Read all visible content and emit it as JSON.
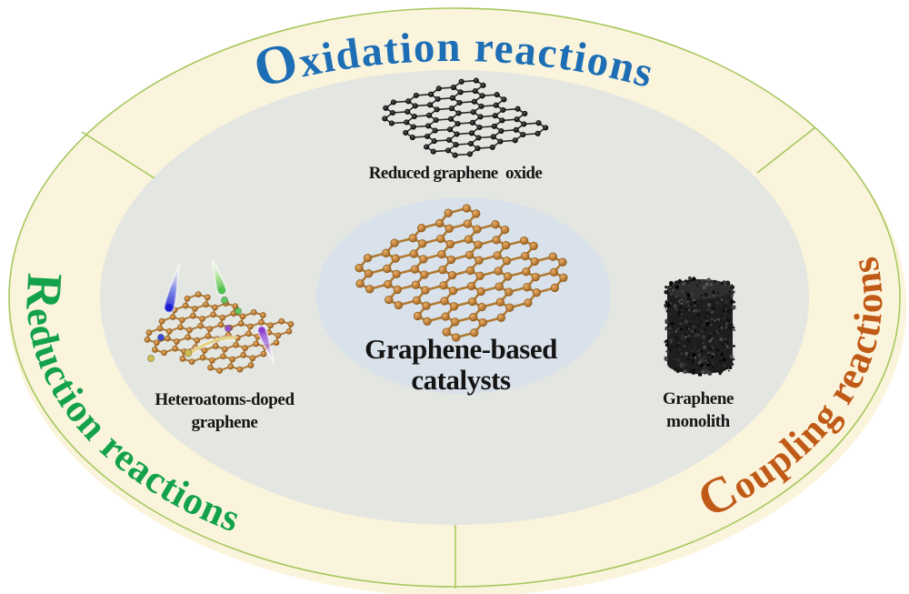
{
  "ring": {
    "oxidation": {
      "label": "Oxidation reactions",
      "color": "#1d6eb5"
    },
    "reduction": {
      "label": "Reduction reactions",
      "color": "#13a24b"
    },
    "coupling": {
      "label": "Coupling reactions",
      "color": "#c05a17"
    }
  },
  "center_label": {
    "line1": "Graphene-based",
    "line2": "catalysts"
  },
  "materials": {
    "reduced_graphene_oxide": {
      "label": "Reduced graphene  oxide"
    },
    "heteroatoms_doped": {
      "line1": "Heteroatoms-doped",
      "line2": "graphene"
    },
    "monolith": {
      "line1": "Graphene",
      "line2": "monolith"
    }
  },
  "palette": {
    "ring_fill": "#fbf4dc",
    "ring_border": "#a6c85e",
    "inner_fill": "#e4e6e1",
    "center_fill": "#d9e2ea",
    "graphene_brown": "#c0803a",
    "graphene_black": "#1e1e1e",
    "label_text": "#151515"
  }
}
